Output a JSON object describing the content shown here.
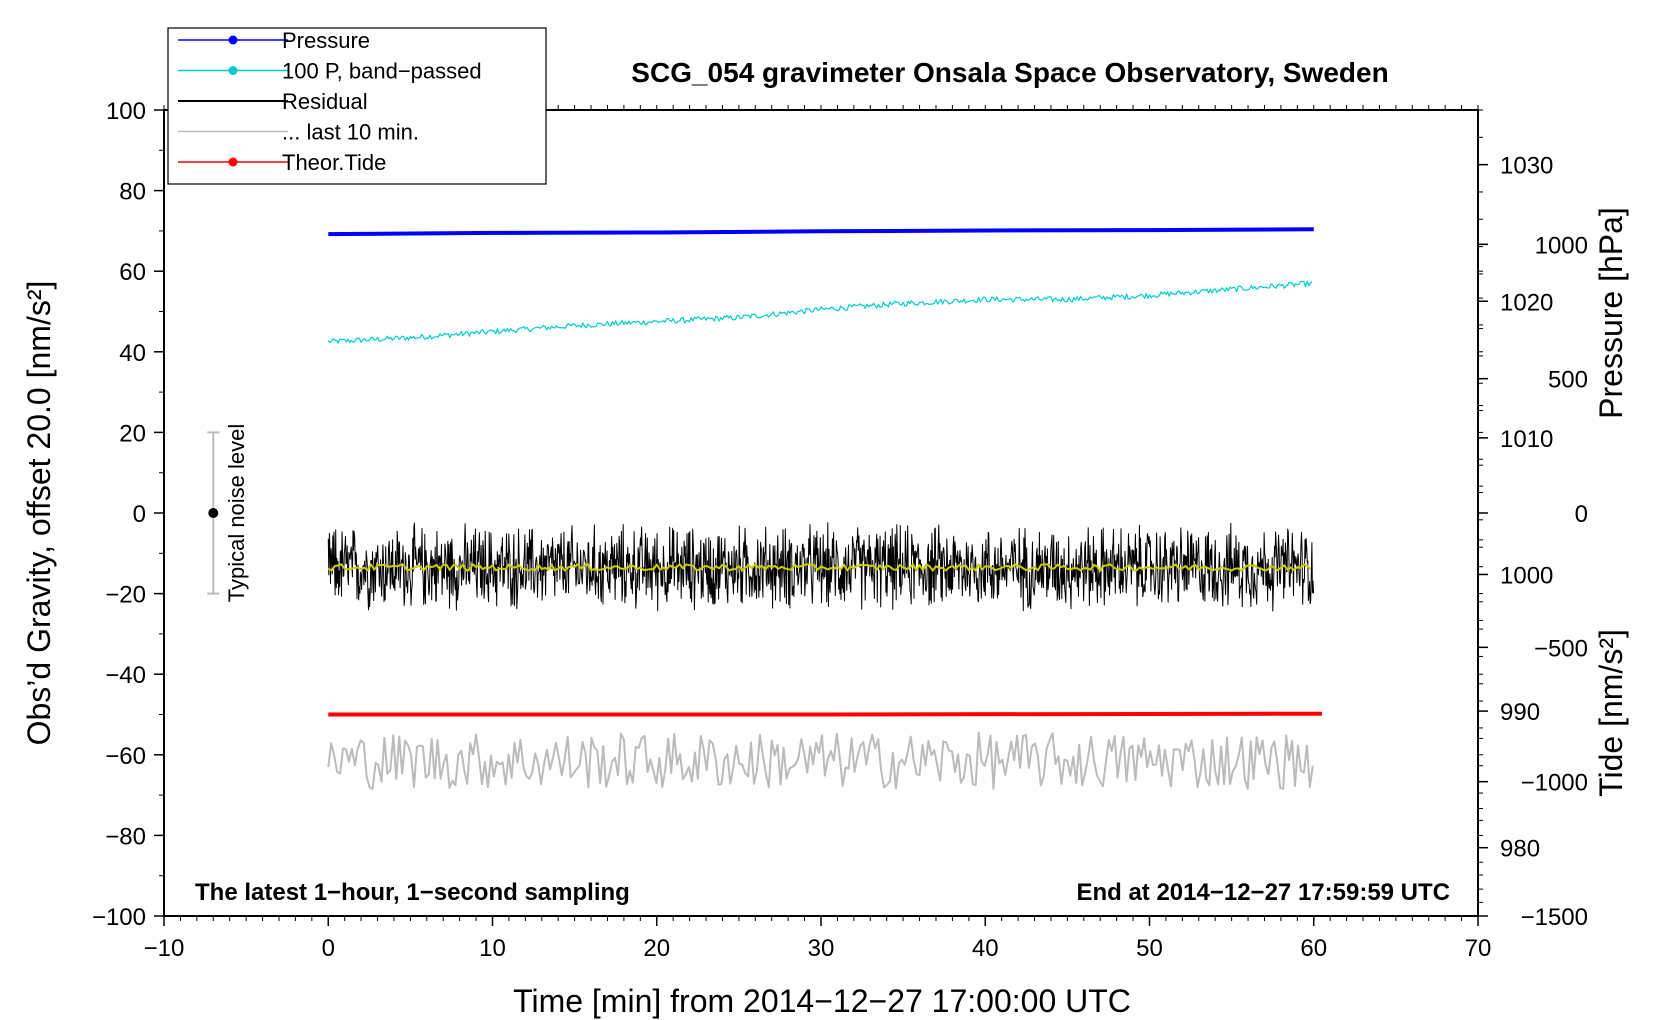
{
  "chart_data": {
    "type": "line",
    "title": "SCG_054 gravimeter Onsala Space Observatory, Sweden",
    "xlabel": "Time [min] from 2014−12−27 17:00:00 UTC",
    "ylabel_left": "Obs’d Gravity, offset 20.0 [nm/s²]",
    "ylabel_right_top": "Pressure [hPa]",
    "ylabel_right_bottom": "Tide [nm/s²]",
    "xlim": [
      -10,
      70
    ],
    "ylim_left": [
      -100,
      100
    ],
    "pressure_axis": [
      975,
      1034
    ],
    "tide_axis": [
      -1500,
      1500
    ],
    "x_ticks": [
      "−10",
      "0",
      "10",
      "20",
      "30",
      "40",
      "50",
      "60",
      "70"
    ],
    "x_tick_values": [
      -10,
      0,
      10,
      20,
      30,
      40,
      50,
      60,
      70
    ],
    "y_left_ticks": [
      "100",
      "80",
      "60",
      "40",
      "20",
      "0",
      "−20",
      "−40",
      "−60",
      "−80",
      "−100"
    ],
    "y_left_tick_values": [
      100,
      80,
      60,
      40,
      20,
      0,
      -20,
      -40,
      -60,
      -80,
      -100
    ],
    "pressure_ticks": [
      "1030",
      "1020",
      "1010",
      "1000",
      "990",
      "980"
    ],
    "pressure_tick_values": [
      1030,
      1020,
      1010,
      1000,
      990,
      980
    ],
    "tide_ticks": [
      "1000",
      "500",
      "0",
      "−500",
      "−1000",
      "−1500"
    ],
    "tide_tick_values": [
      1000,
      500,
      0,
      -500,
      -1000,
      -1500
    ],
    "legend": {
      "placement": "top-left",
      "entries": [
        {
          "label": "Pressure",
          "color": "#0000ff",
          "marker": true
        },
        {
          "label": "100 P, band−passed",
          "color": "#00cccc",
          "marker": true
        },
        {
          "label": "Residual",
          "color": "#000000",
          "marker": false
        },
        {
          "label": "... last 10 min.",
          "color": "#bbbbbb",
          "marker": false
        },
        {
          "label": "Theor.Tide",
          "color": "#ff0000",
          "marker": true
        }
      ]
    },
    "noise_bar": {
      "label": "Typical noise level",
      "x": -7,
      "center": 0,
      "low": -20,
      "high": 20
    },
    "note_left": "The latest 1−hour, 1−second sampling",
    "note_right": "End at 2014−12−27 17:59:59 UTC",
    "series": [
      {
        "name": "Pressure",
        "color": "#0000ff",
        "x": [
          0,
          10,
          20,
          30,
          40,
          50,
          60
        ],
        "y": [
          69.2,
          69.5,
          69.6,
          69.9,
          70.1,
          70.2,
          70.4
        ]
      },
      {
        "name": "100 P, band−passed",
        "color": "#00cccc",
        "x": [
          0,
          5,
          10,
          15,
          20,
          25,
          30,
          35,
          40,
          45,
          50,
          55,
          60
        ],
        "y": [
          42.5,
          43.5,
          45,
          46.5,
          47.5,
          48.5,
          50.5,
          52,
          53,
          53,
          54,
          55.5,
          57
        ]
      },
      {
        "name": "Residual",
        "color": "#000000",
        "x": [
          0,
          60
        ],
        "y": [
          -13.5,
          -13.5
        ],
        "noise_amplitude": 8
      },
      {
        "name": "Residual smoothed",
        "color": "#cccc00",
        "x": [
          0,
          60
        ],
        "y": [
          -13.5,
          -13.5
        ]
      },
      {
        "name": "... last 10 min.",
        "color": "#bbbbbb",
        "x": [
          0,
          60
        ],
        "y": [
          -61.5,
          -61.5
        ],
        "noise_amplitude": 7
      },
      {
        "name": "Theor.Tide",
        "color": "#ff0000",
        "x": [
          0,
          30,
          60.5
        ],
        "y": [
          -50,
          -50,
          -49.8
        ]
      }
    ]
  }
}
